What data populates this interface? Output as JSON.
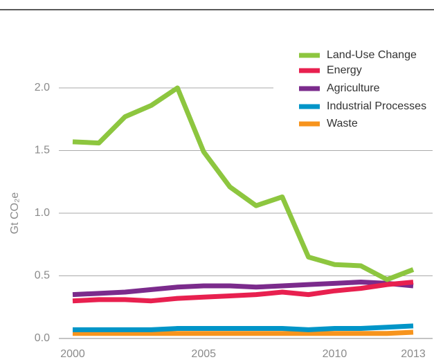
{
  "chart_data": {
    "type": "line",
    "y_label": "Gt CO₂e",
    "x": [
      2000,
      2001,
      2002,
      2003,
      2004,
      2005,
      2006,
      2007,
      2008,
      2009,
      2010,
      2011,
      2012,
      2013
    ],
    "xlim": [
      2000,
      2013
    ],
    "xticks": [
      2000,
      2005,
      2010,
      2013
    ],
    "ylim": [
      0,
      2.0
    ],
    "yticks": [
      {
        "value": 0,
        "label": "0.0"
      },
      0.5,
      {
        "value": 1,
        "label": "1.0"
      },
      1.5,
      {
        "value": 2,
        "label": "2.0"
      }
    ],
    "grid": true,
    "legend": "top-right",
    "series": [
      {
        "name": "Land-Use Change",
        "color": "#8dc63f",
        "values": [
          1.57,
          1.56,
          1.77,
          1.86,
          2.0,
          1.49,
          1.21,
          1.06,
          1.13,
          0.65,
          0.59,
          0.58,
          0.47,
          0.55
        ]
      },
      {
        "name": "Energy",
        "color": "#e8204f",
        "values": [
          0.3,
          0.31,
          0.31,
          0.3,
          0.32,
          0.33,
          0.34,
          0.35,
          0.37,
          0.35,
          0.38,
          0.4,
          0.43,
          0.45
        ]
      },
      {
        "name": "Agriculture",
        "color": "#7b2b8c",
        "values": [
          0.35,
          0.36,
          0.37,
          0.39,
          0.41,
          0.42,
          0.42,
          0.41,
          0.42,
          0.43,
          0.44,
          0.45,
          0.44,
          0.42
        ]
      },
      {
        "name": "Industrial Processes",
        "color": "#0095c8",
        "values": [
          0.07,
          0.07,
          0.07,
          0.07,
          0.08,
          0.08,
          0.08,
          0.08,
          0.08,
          0.07,
          0.08,
          0.08,
          0.09,
          0.1
        ]
      },
      {
        "name": "Waste",
        "color": "#f7941d",
        "values": [
          0.04,
          0.04,
          0.04,
          0.04,
          0.04,
          0.04,
          0.04,
          0.04,
          0.04,
          0.04,
          0.04,
          0.04,
          0.04,
          0.05
        ]
      }
    ]
  }
}
